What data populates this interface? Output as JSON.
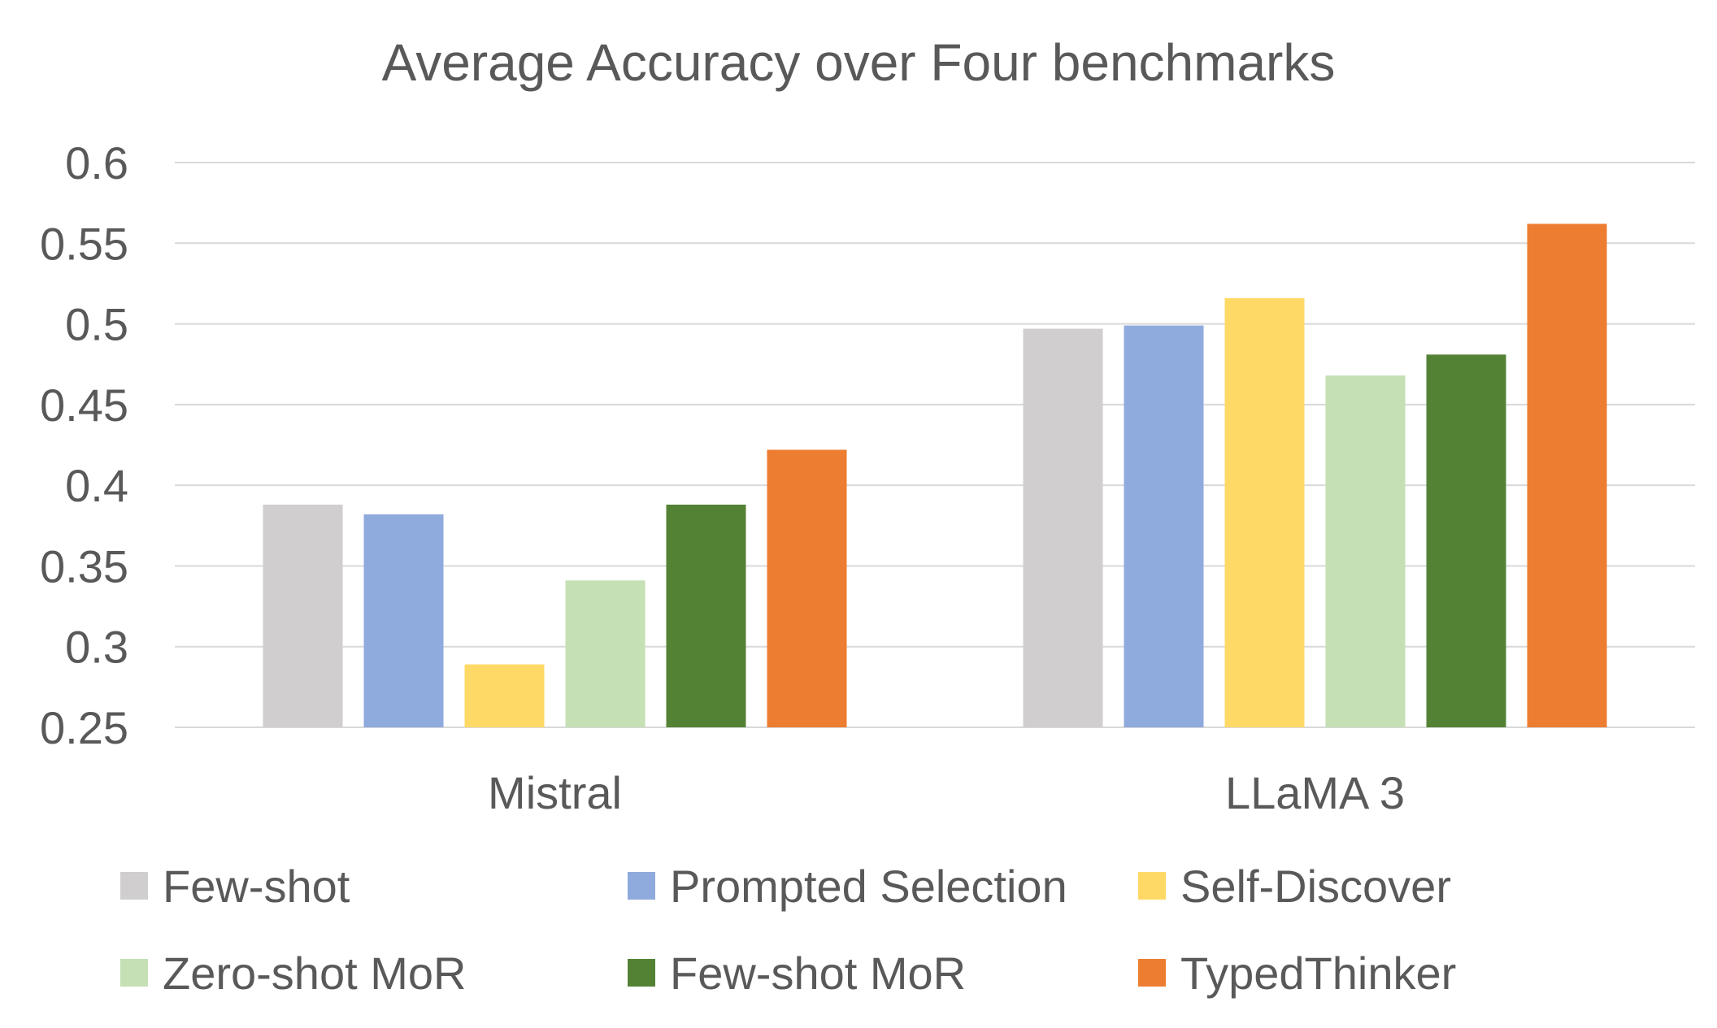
{
  "chart_data": {
    "type": "bar",
    "title": "Average Accuracy over Four benchmarks",
    "xlabel": "",
    "ylabel": "",
    "categories": [
      "Mistral",
      "LLaMA 3"
    ],
    "ylim": [
      0.25,
      0.6
    ],
    "yticks": [
      "0.25",
      "0.3",
      "0.35",
      "0.4",
      "0.45",
      "0.5",
      "0.55",
      "0.6"
    ],
    "grid": true,
    "legend_position": "bottom",
    "series": [
      {
        "name": "Few-shot",
        "color": "#D0CECE",
        "values": [
          0.388,
          0.497
        ]
      },
      {
        "name": "Prompted Selection",
        "color": "#8FAADC",
        "values": [
          0.382,
          0.499
        ]
      },
      {
        "name": "Self-Discover",
        "color": "#FFD966",
        "values": [
          0.289,
          0.516
        ]
      },
      {
        "name": "Zero-shot MoR",
        "color": "#C5E0B4",
        "values": [
          0.341,
          0.468
        ]
      },
      {
        "name": "Few-shot MoR",
        "color": "#548235",
        "values": [
          0.388,
          0.481
        ]
      },
      {
        "name": "TypedThinker",
        "color": "#ED7D31",
        "values": [
          0.422,
          0.562
        ]
      }
    ]
  }
}
